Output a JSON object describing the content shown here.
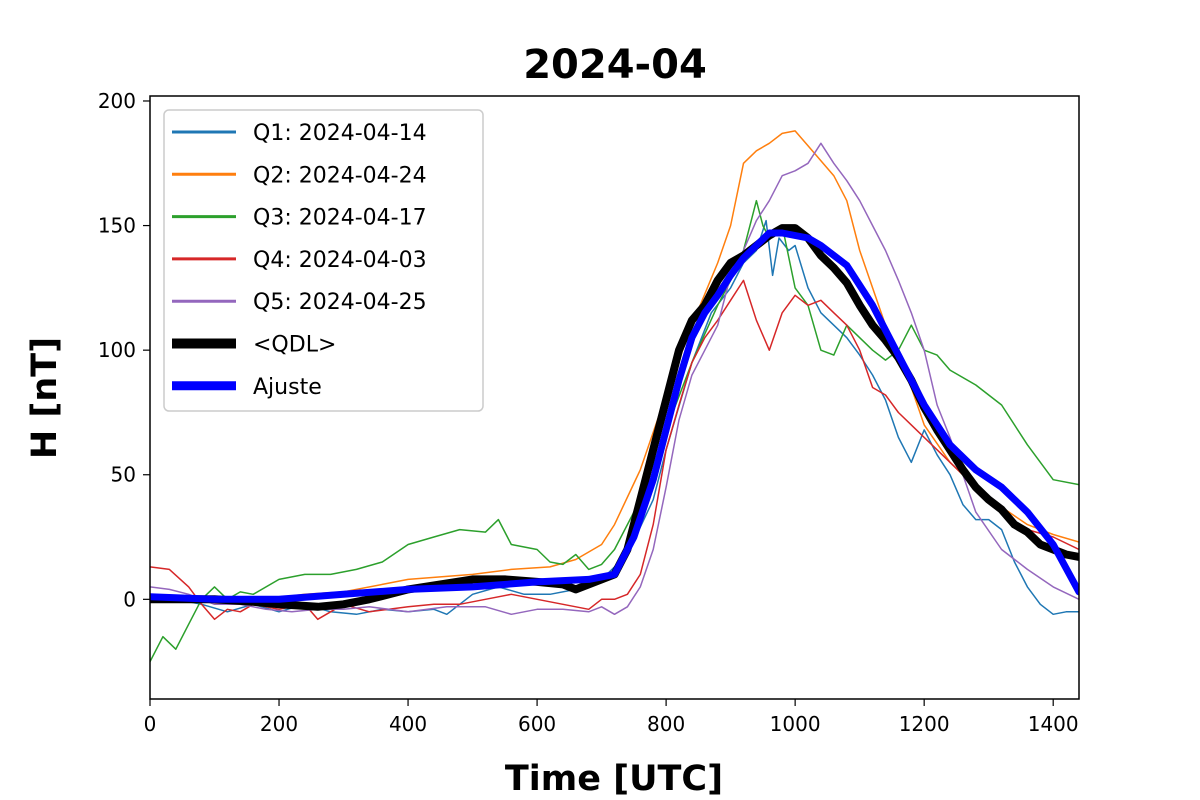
{
  "chart_data": {
    "type": "line",
    "title": "2024-04",
    "xlabel": "Time [UTC]",
    "ylabel": "H [nT]",
    "xlim": [
      0,
      1440
    ],
    "ylim": [
      -40,
      202
    ],
    "xticks": [
      0,
      200,
      400,
      600,
      800,
      1000,
      1200,
      1400
    ],
    "yticks": [
      0,
      50,
      100,
      150,
      200
    ],
    "grid": false,
    "legend_position": "upper-left",
    "series": [
      {
        "name": "Q1: 2024-04-14",
        "color": "#1f77b4",
        "width": 1.5,
        "x": [
          0,
          40,
          80,
          120,
          160,
          200,
          240,
          280,
          320,
          360,
          400,
          440,
          460,
          500,
          540,
          580,
          620,
          660,
          700,
          740,
          780,
          800,
          840,
          870,
          900,
          920,
          940,
          955,
          965,
          975,
          990,
          1000,
          1020,
          1040,
          1060,
          1080,
          1100,
          1120,
          1140,
          1160,
          1180,
          1200,
          1220,
          1240,
          1260,
          1280,
          1300,
          1320,
          1340,
          1360,
          1380,
          1400,
          1420,
          1440
        ],
        "y": [
          0,
          0,
          -2,
          -5,
          -2,
          -5,
          -2,
          -5,
          -6,
          -4,
          -5,
          -4,
          -6,
          2,
          5,
          2,
          2,
          4,
          8,
          18,
          40,
          60,
          95,
          115,
          125,
          135,
          140,
          152,
          130,
          145,
          140,
          142,
          125,
          115,
          110,
          105,
          98,
          90,
          80,
          65,
          55,
          68,
          58,
          50,
          38,
          32,
          32,
          28,
          15,
          5,
          -2,
          -6,
          -5,
          -5
        ]
      },
      {
        "name": "Q2: 2024-04-24",
        "color": "#ff7f0e",
        "width": 1.5,
        "x": [
          0,
          60,
          120,
          180,
          240,
          300,
          360,
          400,
          450,
          500,
          560,
          620,
          660,
          700,
          720,
          760,
          800,
          840,
          880,
          900,
          920,
          940,
          960,
          980,
          1000,
          1020,
          1040,
          1060,
          1080,
          1100,
          1120,
          1140,
          1160,
          1180,
          1200,
          1240,
          1280,
          1320,
          1360,
          1400,
          1440
        ],
        "y": [
          2,
          0,
          -2,
          0,
          2,
          3,
          6,
          8,
          9,
          10,
          12,
          13,
          16,
          22,
          30,
          52,
          82,
          110,
          135,
          150,
          175,
          180,
          183,
          187,
          188,
          182,
          176,
          170,
          160,
          140,
          125,
          110,
          100,
          85,
          70,
          55,
          45,
          37,
          30,
          26,
          23
        ]
      },
      {
        "name": "Q3: 2024-04-17",
        "color": "#2ca02c",
        "width": 1.5,
        "x": [
          0,
          20,
          40,
          60,
          80,
          100,
          120,
          140,
          160,
          200,
          240,
          280,
          320,
          360,
          400,
          440,
          480,
          520,
          540,
          560,
          600,
          620,
          640,
          660,
          680,
          700,
          720,
          760,
          800,
          840,
          880,
          900,
          920,
          940,
          950,
          960,
          980,
          1000,
          1020,
          1040,
          1060,
          1080,
          1100,
          1120,
          1140,
          1160,
          1180,
          1200,
          1220,
          1240,
          1280,
          1320,
          1360,
          1400,
          1440
        ],
        "y": [
          -25,
          -15,
          -20,
          -10,
          0,
          5,
          0,
          3,
          2,
          8,
          10,
          10,
          12,
          15,
          22,
          25,
          28,
          27,
          32,
          22,
          20,
          15,
          14,
          18,
          12,
          14,
          20,
          40,
          68,
          95,
          118,
          128,
          140,
          160,
          150,
          145,
          150,
          125,
          118,
          100,
          98,
          110,
          105,
          100,
          96,
          100,
          110,
          100,
          98,
          92,
          86,
          78,
          62,
          48,
          46
        ]
      },
      {
        "name": "Q4: 2024-04-03",
        "color": "#d62728",
        "width": 1.5,
        "x": [
          0,
          30,
          60,
          80,
          100,
          120,
          140,
          160,
          200,
          240,
          260,
          300,
          340,
          400,
          440,
          480,
          520,
          560,
          600,
          640,
          680,
          700,
          720,
          740,
          760,
          780,
          800,
          820,
          840,
          860,
          880,
          900,
          920,
          940,
          960,
          980,
          1000,
          1020,
          1040,
          1060,
          1080,
          1100,
          1120,
          1140,
          1160,
          1180,
          1200,
          1220,
          1240,
          1280,
          1320,
          1360,
          1400,
          1440
        ],
        "y": [
          13,
          12,
          5,
          -2,
          -8,
          -4,
          -5,
          -2,
          -4,
          -2,
          -8,
          -2,
          -5,
          -3,
          -2,
          -2,
          0,
          2,
          0,
          -2,
          -4,
          0,
          0,
          2,
          10,
          30,
          60,
          78,
          95,
          105,
          112,
          120,
          128,
          112,
          100,
          115,
          122,
          118,
          120,
          115,
          110,
          100,
          85,
          82,
          75,
          70,
          65,
          60,
          55,
          45,
          35,
          28,
          25,
          20
        ]
      },
      {
        "name": "Q5: 2024-04-25",
        "color": "#9467bd",
        "width": 1.5,
        "x": [
          0,
          30,
          60,
          100,
          140,
          180,
          220,
          260,
          300,
          340,
          400,
          460,
          520,
          560,
          600,
          640,
          680,
          700,
          720,
          740,
          760,
          780,
          800,
          820,
          840,
          860,
          880,
          900,
          920,
          940,
          960,
          980,
          1000,
          1020,
          1040,
          1060,
          1080,
          1100,
          1120,
          1140,
          1160,
          1180,
          1200,
          1220,
          1240,
          1260,
          1280,
          1320,
          1360,
          1400,
          1440
        ],
        "y": [
          5,
          4,
          2,
          -2,
          -2,
          -4,
          -5,
          -4,
          -4,
          -3,
          -5,
          -3,
          -3,
          -6,
          -4,
          -4,
          -5,
          -3,
          -6,
          -3,
          5,
          20,
          45,
          72,
          90,
          100,
          110,
          130,
          140,
          152,
          160,
          170,
          172,
          175,
          183,
          175,
          168,
          160,
          150,
          140,
          128,
          115,
          100,
          78,
          65,
          50,
          35,
          20,
          12,
          5,
          0
        ]
      },
      {
        "name": "<QDL>",
        "color": "#000000",
        "width": 8,
        "x": [
          0,
          100,
          160,
          200,
          260,
          300,
          340,
          400,
          450,
          500,
          550,
          600,
          640,
          660,
          700,
          720,
          740,
          760,
          780,
          800,
          820,
          840,
          860,
          880,
          900,
          920,
          940,
          960,
          980,
          1000,
          1020,
          1040,
          1060,
          1080,
          1100,
          1120,
          1140,
          1160,
          1180,
          1200,
          1220,
          1240,
          1260,
          1280,
          1300,
          1320,
          1340,
          1360,
          1380,
          1400,
          1420,
          1440
        ],
        "y": [
          0,
          0,
          -1,
          -2,
          -3,
          -2,
          0,
          4,
          6,
          8,
          8,
          7,
          6,
          4,
          8,
          10,
          20,
          40,
          60,
          80,
          100,
          112,
          118,
          128,
          135,
          138,
          142,
          146,
          149,
          149,
          145,
          138,
          133,
          127,
          118,
          110,
          104,
          97,
          88,
          77,
          68,
          60,
          52,
          45,
          40,
          36,
          30,
          27,
          22,
          20,
          18,
          17
        ]
      },
      {
        "name": "Ajuste",
        "color": "#0000ff",
        "width": 7,
        "x": [
          0,
          100,
          200,
          300,
          400,
          500,
          600,
          680,
          720,
          750,
          780,
          800,
          820,
          840,
          860,
          880,
          900,
          920,
          940,
          960,
          980,
          1000,
          1020,
          1040,
          1080,
          1120,
          1160,
          1200,
          1240,
          1280,
          1320,
          1360,
          1400,
          1440
        ],
        "y": [
          1,
          0,
          0,
          2,
          4,
          5,
          7,
          8,
          10,
          25,
          48,
          68,
          88,
          105,
          115,
          122,
          130,
          137,
          142,
          147,
          147,
          146,
          145,
          142,
          134,
          118,
          98,
          78,
          62,
          52,
          45,
          35,
          22,
          3
        ]
      }
    ]
  }
}
